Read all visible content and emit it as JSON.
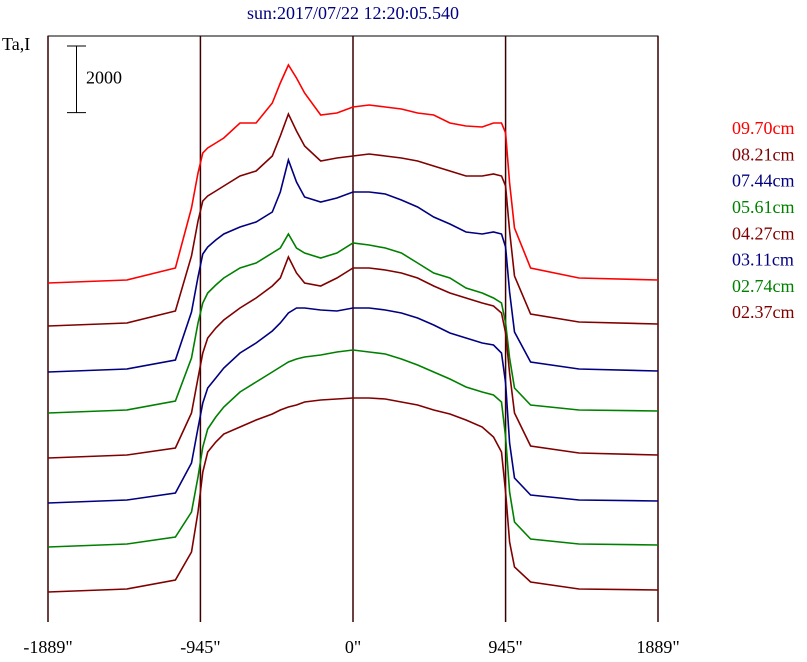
{
  "chart_data": {
    "type": "line",
    "title": "sun:2017/07/22 12:20:05.540",
    "y_label": "Ta,I",
    "scale_bar": 2000,
    "x": [
      -1889,
      -1400,
      -1100,
      -1000,
      -960,
      -930,
      -900,
      -850,
      -800,
      -700,
      -600,
      -500,
      -450,
      -400,
      -350,
      -300,
      -200,
      -100,
      0,
      100,
      200,
      300,
      400,
      500,
      600,
      700,
      800,
      870,
      920,
      945,
      970,
      1000,
      1100,
      1400,
      1889
    ],
    "xlim": [
      -1889,
      1889
    ],
    "xticks": [
      {
        "value": -1889,
        "label": "-1889\""
      },
      {
        "value": -945,
        "label": "-945\""
      },
      {
        "value": 0,
        "label": "0\""
      },
      {
        "value": 945,
        "label": "945\""
      },
      {
        "value": 1889,
        "label": "1889\""
      }
    ],
    "ylim": [
      0,
      17580
    ],
    "grid": true,
    "series": [
      {
        "name": "09.70cm",
        "color": "#ff0000",
        "values": [
          10170,
          10260,
          10620,
          12420,
          13470,
          14070,
          14220,
          14370,
          14520,
          14970,
          14970,
          15570,
          16170,
          16710,
          16320,
          15870,
          15210,
          15270,
          15450,
          15510,
          15450,
          15390,
          15270,
          15210,
          14970,
          14880,
          14850,
          14970,
          14970,
          14670,
          13170,
          11820,
          10620,
          10320,
          10260
        ]
      },
      {
        "name": "08.21cm",
        "color": "#800000",
        "values": [
          8880,
          8970,
          9330,
          10980,
          12030,
          12630,
          12780,
          12930,
          13080,
          13380,
          13530,
          13980,
          14580,
          15240,
          14730,
          14280,
          13830,
          13920,
          13980,
          14040,
          13980,
          13920,
          13830,
          13680,
          13530,
          13380,
          13380,
          13440,
          13380,
          13080,
          11730,
          10380,
          9240,
          9000,
          8940
        ]
      },
      {
        "name": "07.44cm",
        "color": "#000080",
        "values": [
          7500,
          7590,
          7860,
          9300,
          10350,
          11040,
          11250,
          11460,
          11640,
          11850,
          12000,
          12300,
          12900,
          13860,
          13200,
          12750,
          12600,
          12720,
          12900,
          12900,
          12840,
          12660,
          12450,
          12150,
          11940,
          11700,
          11640,
          11700,
          11640,
          11250,
          9900,
          8700,
          7800,
          7590,
          7530
        ]
      },
      {
        "name": "05.61cm",
        "color": "#008000",
        "values": [
          6270,
          6360,
          6630,
          7920,
          8970,
          9570,
          9870,
          10110,
          10320,
          10620,
          10770,
          11070,
          11220,
          11640,
          11220,
          11070,
          10920,
          11070,
          11370,
          11310,
          11220,
          11070,
          10770,
          10470,
          10320,
          10020,
          9870,
          9720,
          9570,
          8970,
          7920,
          7020,
          6510,
          6360,
          6330
        ]
      },
      {
        "name": "04.27cm",
        "color": "#800000",
        "values": [
          4920,
          5010,
          5220,
          6270,
          7320,
          8070,
          8520,
          8820,
          9060,
          9420,
          9720,
          10080,
          10320,
          10950,
          10470,
          10170,
          10080,
          10320,
          10620,
          10620,
          10560,
          10470,
          10320,
          10080,
          9870,
          9720,
          9570,
          9480,
          9270,
          8670,
          7470,
          6270,
          5280,
          5070,
          5010
        ]
      },
      {
        "name": "03.11cm",
        "color": "#000080",
        "values": [
          3570,
          3660,
          3870,
          4770,
          5820,
          6570,
          7020,
          7320,
          7620,
          8070,
          8370,
          8730,
          8970,
          9270,
          9420,
          9420,
          9360,
          9330,
          9420,
          9420,
          9360,
          9270,
          9120,
          8910,
          8670,
          8520,
          8370,
          8310,
          8070,
          7170,
          5370,
          4320,
          3810,
          3660,
          3630
        ]
      },
      {
        "name": "02.74cm",
        "color": "#008000",
        "values": [
          2250,
          2340,
          2550,
          3300,
          4350,
          5250,
          5790,
          6150,
          6450,
          6900,
          7200,
          7500,
          7650,
          7800,
          7890,
          7950,
          8010,
          8100,
          8160,
          8100,
          8040,
          7890,
          7710,
          7500,
          7290,
          7050,
          6900,
          6810,
          6600,
          5550,
          3900,
          3000,
          2490,
          2340,
          2310
        ]
      },
      {
        "name": "02.37cm",
        "color": "#800000",
        "values": [
          900,
          990,
          1260,
          2100,
          3300,
          4500,
          5100,
          5400,
          5640,
          5850,
          6060,
          6240,
          6360,
          6450,
          6510,
          6600,
          6660,
          6690,
          6720,
          6720,
          6690,
          6600,
          6510,
          6360,
          6240,
          6060,
          5850,
          5550,
          5100,
          3900,
          2400,
          1650,
          1200,
          990,
          960
        ]
      }
    ]
  }
}
